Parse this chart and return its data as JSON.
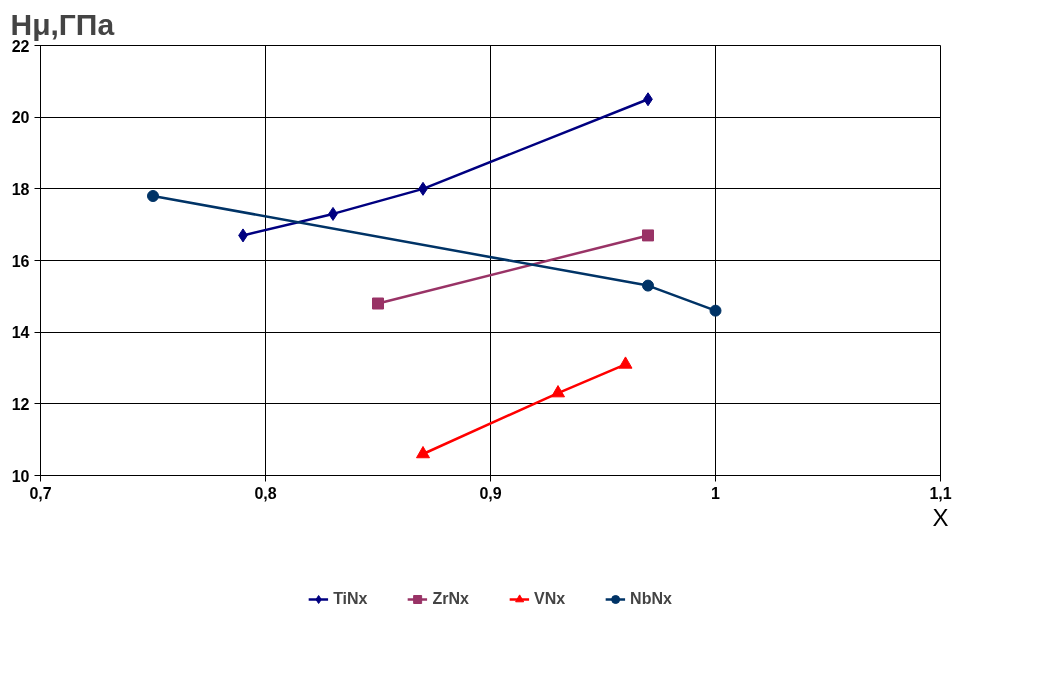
{
  "chart_data": {
    "type": "line",
    "ylabel": "Hμ,ГПа",
    "xlabel": "X",
    "xlim": [
      0.7,
      1.1
    ],
    "xticks": [
      {
        "value": 0.7,
        "label": "0,7"
      },
      {
        "value": 0.8,
        "label": "0,8"
      },
      {
        "value": 0.9,
        "label": "0,9"
      },
      1,
      {
        "value": 1.1,
        "label": "1,1"
      }
    ],
    "ylim": [
      10,
      22
    ],
    "yticks": [
      10,
      12,
      14,
      16,
      18,
      20,
      22
    ],
    "grid": true,
    "legend": "bottom",
    "line_style": "solid",
    "series": [
      {
        "name": "TiNx",
        "color": "#000080",
        "marker": "diamond",
        "x": [
          0.79,
          0.83,
          0.87,
          0.97
        ],
        "values": [
          16.7,
          17.3,
          18.0,
          20.5
        ]
      },
      {
        "name": "ZrNx",
        "color": "#993366",
        "marker": "square",
        "x": [
          0.85,
          0.97
        ],
        "values": [
          14.8,
          16.7
        ]
      },
      {
        "name": "VNx",
        "color": "#ff0000",
        "marker": "triangle",
        "x": [
          0.87,
          0.93,
          0.96
        ],
        "values": [
          10.6,
          12.3,
          13.1
        ]
      },
      {
        "name": "NbNx",
        "color": "#003366",
        "marker": "circle",
        "x": [
          0.75,
          0.97,
          1.0
        ],
        "values": [
          17.8,
          15.3,
          14.6
        ]
      }
    ]
  }
}
